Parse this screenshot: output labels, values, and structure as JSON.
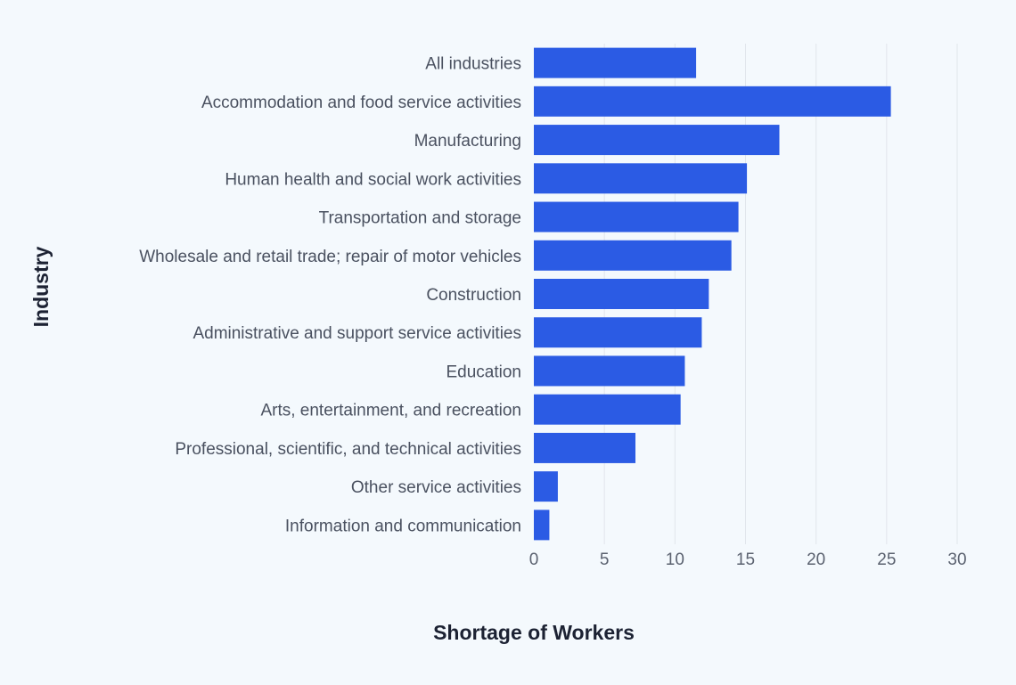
{
  "chart_data": {
    "type": "bar",
    "orientation": "horizontal",
    "xlabel": "Shortage of Workers",
    "ylabel": "Industry",
    "xlim": [
      0,
      30
    ],
    "xticks": [
      0,
      5,
      10,
      15,
      20,
      25,
      30
    ],
    "grid": true,
    "bar_color": "#2b5be4",
    "categories": [
      "All industries",
      "Accommodation and food service activities",
      "Manufacturing",
      "Human health and social work activities",
      "Transportation and storage",
      "Wholesale and retail trade; repair of motor vehicles",
      "Construction",
      "Administrative and support service activities",
      "Education",
      "Arts, entertainment, and recreation",
      "Professional, scientific, and technical activities",
      "Other service activities",
      "Information and communication"
    ],
    "values": [
      11.5,
      25.3,
      17.4,
      15.1,
      14.5,
      14.0,
      12.4,
      11.9,
      10.7,
      10.4,
      7.2,
      1.7,
      1.1
    ]
  }
}
